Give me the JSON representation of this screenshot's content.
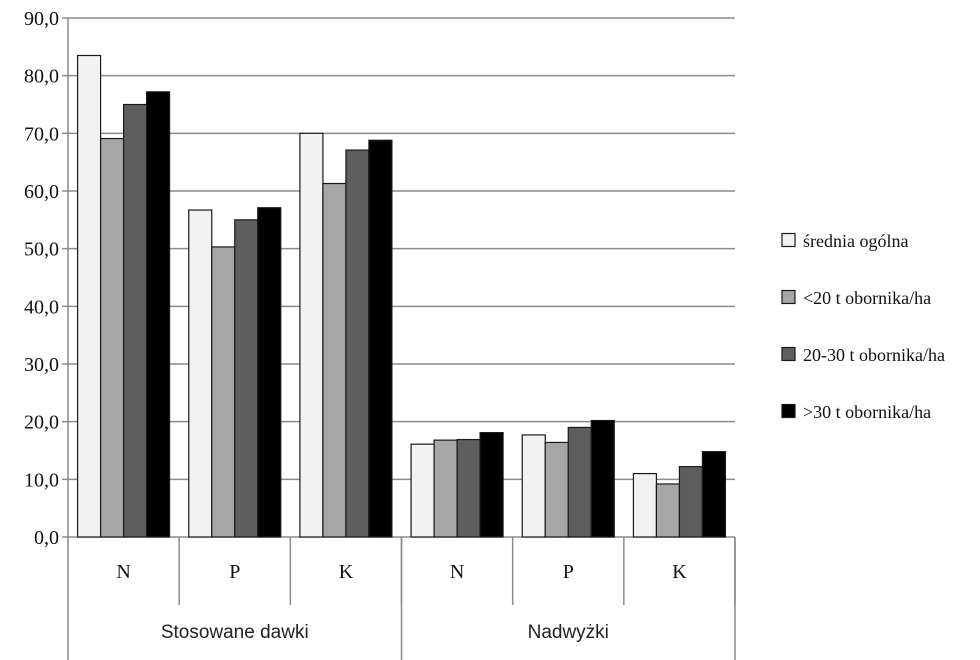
{
  "chart_data": {
    "type": "bar",
    "categories": [
      "N",
      "P",
      "K",
      "N",
      "P",
      "K"
    ],
    "groups": [
      {
        "label": "Stosowane dawki",
        "span": 3
      },
      {
        "label": "Nadwyżki",
        "span": 3
      }
    ],
    "series": [
      {
        "name": "średnia ogólna",
        "color": "#f2f2f2",
        "values": [
          83.5,
          56.7,
          70.0,
          16.1,
          17.7,
          11.0
        ]
      },
      {
        "name": "<20 t obornika/ha",
        "color": "#a6a6a6",
        "values": [
          69.1,
          50.3,
          61.3,
          16.8,
          16.4,
          9.2
        ]
      },
      {
        "name": "20-30 t obornika/ha",
        "color": "#5e5e5e",
        "values": [
          75.0,
          55.0,
          67.1,
          16.9,
          19.0,
          12.2
        ]
      },
      {
        "name": ">30 t obornika/ha",
        "color": "#000000",
        "values": [
          77.2,
          57.1,
          68.8,
          18.1,
          20.2,
          14.8
        ]
      }
    ],
    "ylim": [
      0,
      90
    ],
    "yticks": [
      "0,0",
      "10,0",
      "20,0",
      "30,0",
      "40,0",
      "50,0",
      "60,0",
      "70,0",
      "80,0",
      "90,0"
    ],
    "grid": true,
    "legend_position": "right"
  }
}
